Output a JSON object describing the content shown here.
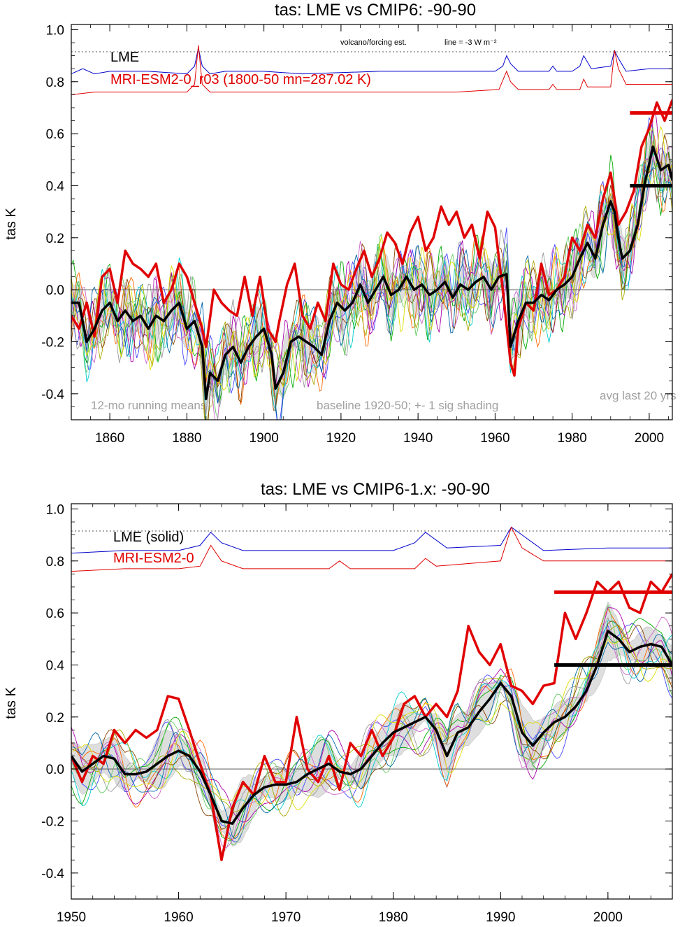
{
  "colors": {
    "lme": "#0000cc",
    "model": "#e00000",
    "mean": "#000000",
    "shade": "#d6d6d6",
    "note": "#a0a0a0",
    "members": [
      "#4444ff",
      "#00aa00",
      "#ff6600",
      "#aa00aa",
      "#00cccc",
      "#aaaa00",
      "#884400",
      "#999999",
      "#66cc66",
      "#cc66cc",
      "#0066aa",
      "#dddd00"
    ]
  },
  "chart_data": [
    {
      "type": "line",
      "title": "tas: LME vs CMIP6: -90-90",
      "ylabel": "tas K",
      "xlim": [
        1850,
        2006
      ],
      "ylim": [
        -0.5,
        1.02
      ],
      "xticks": [
        1860,
        1880,
        1900,
        1920,
        1940,
        1960,
        1980,
        2000
      ],
      "xtick_labels": [
        "1860",
        "1880",
        "1900",
        "1920",
        "1940",
        "1960",
        "1980",
        "2000"
      ],
      "yticks": [
        -0.4,
        -0.2,
        0.0,
        0.2,
        0.4,
        0.6,
        0.8,
        1.0
      ],
      "ytick_labels": [
        "-0.4",
        "-0.2",
        "0.0",
        "0.2",
        "0.4",
        "0.6",
        "0.8",
        "1.0"
      ],
      "legend": [
        "LME",
        "MRI-ESM2-0_r03 (1800-50 mn=287.02 K)"
      ],
      "annotations": {
        "top_note": "volcano/forcing est.",
        "top_note2": "line = -3 W m⁻²",
        "left_note": "12-mo running means",
        "mid_note": "baseline 1920-50; +- 1 sig shading",
        "right_note": "avg last 20 yrs"
      },
      "dotted_level": 0.915,
      "series": [
        {
          "name": "LME",
          "x": [
            1850,
            1853,
            1856,
            1860,
            1870,
            1880,
            1882,
            1883,
            1884,
            1886,
            1890,
            1900,
            1910,
            1930,
            1950,
            1960,
            1962,
            1963,
            1964,
            1966,
            1970,
            1974,
            1975,
            1976,
            1980,
            1982,
            1983,
            1985,
            1990,
            1991,
            1992,
            1994,
            2000,
            2006
          ],
          "y": [
            0.83,
            0.85,
            0.83,
            0.84,
            0.84,
            0.83,
            0.86,
            0.93,
            0.86,
            0.83,
            0.84,
            0.84,
            0.83,
            0.84,
            0.84,
            0.84,
            0.86,
            0.9,
            0.87,
            0.84,
            0.84,
            0.84,
            0.86,
            0.84,
            0.84,
            0.86,
            0.9,
            0.85,
            0.86,
            0.92,
            0.89,
            0.84,
            0.85,
            0.85
          ]
        },
        {
          "name": "MRI-ESM2-0_r03",
          "x": [
            1850,
            1856,
            1860,
            1870,
            1880,
            1882,
            1883,
            1884,
            1886,
            1900,
            1920,
            1950,
            1961,
            1963,
            1964,
            1966,
            1974,
            1975,
            1976,
            1982,
            1983,
            1984,
            1990,
            1991,
            1992,
            1994,
            2000,
            2006
          ],
          "y": [
            0.75,
            0.76,
            0.76,
            0.76,
            0.76,
            0.79,
            0.94,
            0.79,
            0.76,
            0.76,
            0.76,
            0.76,
            0.77,
            0.84,
            0.8,
            0.77,
            0.77,
            0.79,
            0.77,
            0.77,
            0.81,
            0.78,
            0.78,
            0.92,
            0.85,
            0.79,
            0.79,
            0.79
          ]
        },
        {
          "name": "MRI-ESM2-0",
          "x": [
            1850,
            1852,
            1854,
            1856,
            1858,
            1860,
            1862,
            1864,
            1866,
            1868,
            1870,
            1872,
            1874,
            1876,
            1878,
            1880,
            1882,
            1884,
            1885,
            1887,
            1889,
            1891,
            1893,
            1895,
            1897,
            1899,
            1901,
            1903,
            1904,
            1906,
            1908,
            1910,
            1912,
            1914,
            1916,
            1918,
            1920,
            1922,
            1924,
            1926,
            1928,
            1930,
            1932,
            1934,
            1936,
            1938,
            1940,
            1942,
            1944,
            1946,
            1948,
            1950,
            1952,
            1954,
            1956,
            1958,
            1960,
            1962,
            1964,
            1965,
            1966,
            1968,
            1970,
            1972,
            1974,
            1976,
            1978,
            1980,
            1982,
            1984,
            1986,
            1988,
            1990,
            1992,
            1994,
            1996,
            1998,
            2000,
            2002,
            2004,
            2006
          ],
          "y": [
            -0.1,
            -0.15,
            -0.05,
            -0.18,
            0.05,
            0.08,
            -0.05,
            0.15,
            0.1,
            0.08,
            0.05,
            0.1,
            -0.05,
            0.0,
            0.1,
            0.05,
            -0.05,
            -0.15,
            -0.22,
            0.0,
            -0.05,
            -0.08,
            -0.1,
            0.05,
            -0.1,
            0.05,
            -0.15,
            -0.2,
            -0.12,
            0.02,
            0.1,
            -0.1,
            -0.15,
            -0.05,
            -0.12,
            0.1,
            0.02,
            0.0,
            0.08,
            0.15,
            0.05,
            0.12,
            0.22,
            0.18,
            0.1,
            0.22,
            0.28,
            0.15,
            0.2,
            0.32,
            0.25,
            0.3,
            0.2,
            0.25,
            0.12,
            0.3,
            0.24,
            0.0,
            -0.28,
            -0.33,
            -0.15,
            -0.05,
            -0.08,
            0.1,
            -0.02,
            0.0,
            0.05,
            0.2,
            0.15,
            0.25,
            0.2,
            0.35,
            0.45,
            0.25,
            0.3,
            0.38,
            0.55,
            0.62,
            0.72,
            0.65,
            0.73
          ]
        },
        {
          "name": "LME mean",
          "x": [
            1850,
            1852,
            1854,
            1856,
            1858,
            1860,
            1862,
            1864,
            1866,
            1868,
            1870,
            1872,
            1874,
            1876,
            1878,
            1880,
            1882,
            1884,
            1885,
            1886,
            1888,
            1890,
            1892,
            1894,
            1896,
            1898,
            1900,
            1902,
            1903,
            1905,
            1907,
            1909,
            1911,
            1913,
            1915,
            1917,
            1919,
            1921,
            1923,
            1925,
            1927,
            1929,
            1931,
            1933,
            1935,
            1937,
            1939,
            1941,
            1943,
            1945,
            1947,
            1949,
            1951,
            1953,
            1955,
            1957,
            1959,
            1961,
            1963,
            1964,
            1966,
            1968,
            1970,
            1972,
            1974,
            1976,
            1978,
            1980,
            1982,
            1984,
            1986,
            1988,
            1990,
            1991,
            1992,
            1993,
            1995,
            1997,
            1999,
            2001,
            2003,
            2005,
            2006
          ],
          "y": [
            -0.05,
            -0.05,
            -0.2,
            -0.15,
            -0.08,
            -0.05,
            -0.12,
            -0.08,
            -0.12,
            -0.1,
            -0.15,
            -0.1,
            -0.12,
            -0.08,
            -0.05,
            -0.15,
            -0.12,
            -0.22,
            -0.42,
            -0.32,
            -0.35,
            -0.25,
            -0.22,
            -0.28,
            -0.22,
            -0.18,
            -0.15,
            -0.25,
            -0.38,
            -0.32,
            -0.2,
            -0.18,
            -0.2,
            -0.22,
            -0.25,
            -0.12,
            -0.05,
            -0.08,
            -0.05,
            0.02,
            -0.05,
            0.0,
            0.05,
            -0.02,
            0.0,
            0.05,
            0.0,
            0.02,
            -0.02,
            0.0,
            0.03,
            -0.03,
            0.02,
            0.0,
            0.03,
            0.05,
            0.0,
            0.05,
            0.06,
            -0.22,
            -0.12,
            -0.05,
            -0.05,
            -0.02,
            -0.04,
            0.0,
            0.02,
            0.05,
            0.12,
            0.18,
            0.12,
            0.25,
            0.34,
            0.3,
            0.2,
            0.12,
            0.15,
            0.25,
            0.42,
            0.55,
            0.46,
            0.48,
            0.42
          ]
        }
      ],
      "ensemble_members": 12,
      "avg_last20": [
        {
          "name": "MRI-ESM2-0",
          "x0": 1995,
          "x1": 2006,
          "value": 0.68
        },
        {
          "name": "LME",
          "x0": 1995,
          "x1": 2006,
          "value": 0.4
        }
      ]
    },
    {
      "type": "line",
      "title": "tas: LME vs CMIP6-1.x: -90-90",
      "ylabel": "tas K",
      "xlim": [
        1950,
        2006
      ],
      "ylim": [
        -0.5,
        1.02
      ],
      "xticks": [
        1950,
        1960,
        1970,
        1980,
        1990,
        2000
      ],
      "xtick_labels": [
        "1950",
        "1960",
        "1970",
        "1980",
        "1990",
        "2000"
      ],
      "yticks": [
        -0.4,
        -0.2,
        0.0,
        0.2,
        0.4,
        0.6,
        0.8,
        1.0
      ],
      "ytick_labels": [
        "-0.4",
        "-0.2",
        "0.0",
        "0.2",
        "0.4",
        "0.6",
        "0.8",
        "1.0"
      ],
      "legend": [
        "LME (solid)",
        "MRI-ESM2-0"
      ],
      "dotted_level": 0.915,
      "series": [
        {
          "name": "LME",
          "x": [
            1950,
            1955,
            1960,
            1962,
            1963,
            1964,
            1966,
            1970,
            1980,
            1982,
            1983,
            1985,
            1990,
            1991,
            1992,
            1994,
            2000,
            2006
          ],
          "y": [
            0.83,
            0.84,
            0.84,
            0.86,
            0.91,
            0.87,
            0.84,
            0.84,
            0.84,
            0.87,
            0.91,
            0.85,
            0.86,
            0.93,
            0.9,
            0.84,
            0.85,
            0.85
          ]
        },
        {
          "name": "MRI-ESM2-0",
          "x": [
            1950,
            1955,
            1960,
            1962,
            1963,
            1964,
            1966,
            1974,
            1975,
            1976,
            1982,
            1983,
            1984,
            1990,
            1991,
            1992,
            1994,
            2000,
            2006
          ],
          "y": [
            0.76,
            0.77,
            0.77,
            0.78,
            0.86,
            0.8,
            0.77,
            0.77,
            0.8,
            0.77,
            0.77,
            0.81,
            0.78,
            0.8,
            0.93,
            0.85,
            0.8,
            0.8,
            0.8
          ]
        },
        {
          "name": "MRI-ESM2-0",
          "x": [
            1950,
            1951,
            1952,
            1953,
            1954,
            1955,
            1956,
            1957,
            1958,
            1959,
            1960,
            1961,
            1962,
            1963,
            1964,
            1965,
            1966,
            1967,
            1968,
            1969,
            1970,
            1971,
            1972,
            1973,
            1974,
            1975,
            1976,
            1977,
            1978,
            1979,
            1980,
            1981,
            1982,
            1983,
            1984,
            1985,
            1986,
            1987,
            1988,
            1989,
            1990,
            1991,
            1992,
            1993,
            1994,
            1995,
            1996,
            1997,
            1998,
            1999,
            2000,
            2001,
            2002,
            2003,
            2004,
            2005,
            2006
          ],
          "y": [
            0.05,
            -0.05,
            0.05,
            0.02,
            0.15,
            0.1,
            0.15,
            0.12,
            0.15,
            0.28,
            0.27,
            0.15,
            0.02,
            -0.1,
            -0.35,
            -0.15,
            -0.05,
            -0.1,
            0.05,
            -0.05,
            -0.05,
            0.2,
            0.0,
            -0.05,
            0.05,
            -0.08,
            0.1,
            0.05,
            0.15,
            0.05,
            0.12,
            0.25,
            0.28,
            0.2,
            0.25,
            0.2,
            0.3,
            0.55,
            0.45,
            0.4,
            0.48,
            0.32,
            0.3,
            0.25,
            0.32,
            0.33,
            0.6,
            0.5,
            0.6,
            0.72,
            0.68,
            0.72,
            0.62,
            0.6,
            0.72,
            0.68,
            0.75
          ]
        },
        {
          "name": "LME mean",
          "x": [
            1950,
            1951,
            1952,
            1953,
            1954,
            1955,
            1956,
            1957,
            1958,
            1959,
            1960,
            1961,
            1962,
            1963,
            1964,
            1965,
            1966,
            1967,
            1968,
            1969,
            1970,
            1971,
            1972,
            1973,
            1974,
            1975,
            1976,
            1977,
            1978,
            1979,
            1980,
            1981,
            1982,
            1983,
            1984,
            1985,
            1986,
            1987,
            1988,
            1989,
            1990,
            1991,
            1992,
            1993,
            1994,
            1995,
            1996,
            1997,
            1998,
            1999,
            2000,
            2001,
            2002,
            2003,
            2004,
            2005,
            2006
          ],
          "y": [
            0.05,
            -0.01,
            0.02,
            0.05,
            0.04,
            -0.02,
            -0.02,
            -0.01,
            0.02,
            0.05,
            0.07,
            0.05,
            -0.01,
            -0.1,
            -0.2,
            -0.21,
            -0.15,
            -0.1,
            -0.07,
            -0.06,
            -0.06,
            -0.05,
            -0.02,
            0.0,
            0.02,
            -0.01,
            -0.02,
            0.0,
            0.05,
            0.1,
            0.14,
            0.16,
            0.18,
            0.2,
            0.15,
            0.05,
            0.14,
            0.16,
            0.22,
            0.27,
            0.33,
            0.28,
            0.14,
            0.09,
            0.14,
            0.18,
            0.2,
            0.24,
            0.3,
            0.4,
            0.53,
            0.5,
            0.45,
            0.47,
            0.48,
            0.47,
            0.4
          ]
        }
      ],
      "ensemble_members": 12,
      "avg_last20": [
        {
          "name": "MRI-ESM2-0",
          "x0": 1995,
          "x1": 2006,
          "value": 0.68
        },
        {
          "name": "LME",
          "x0": 1995,
          "x1": 2006,
          "value": 0.4
        }
      ]
    }
  ]
}
